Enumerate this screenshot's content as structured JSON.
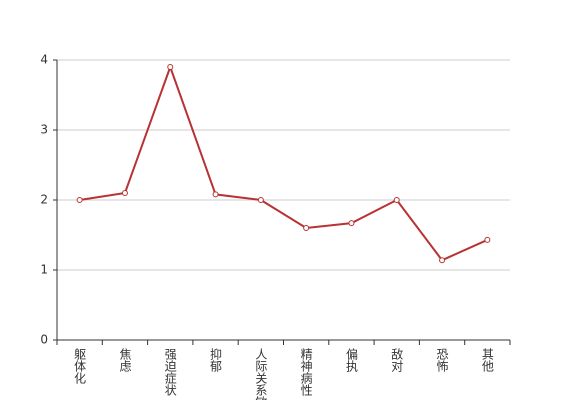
{
  "chart_data": {
    "type": "line",
    "categories": [
      "躯体化",
      "焦虑",
      "强迫症状",
      "抑郁",
      "人际关系敏感",
      "精神病性",
      "偏执",
      "敌对",
      "恐怖",
      "其他"
    ],
    "series": [
      {
        "color": "#b83233",
        "values": [
          2.0,
          2.1,
          3.9,
          2.08,
          2.0,
          1.6,
          1.67,
          2.0,
          1.14,
          1.43
        ]
      }
    ],
    "ylim": [
      0,
      4
    ],
    "yticks": [
      0,
      1,
      2,
      3,
      4
    ],
    "grid": true
  }
}
